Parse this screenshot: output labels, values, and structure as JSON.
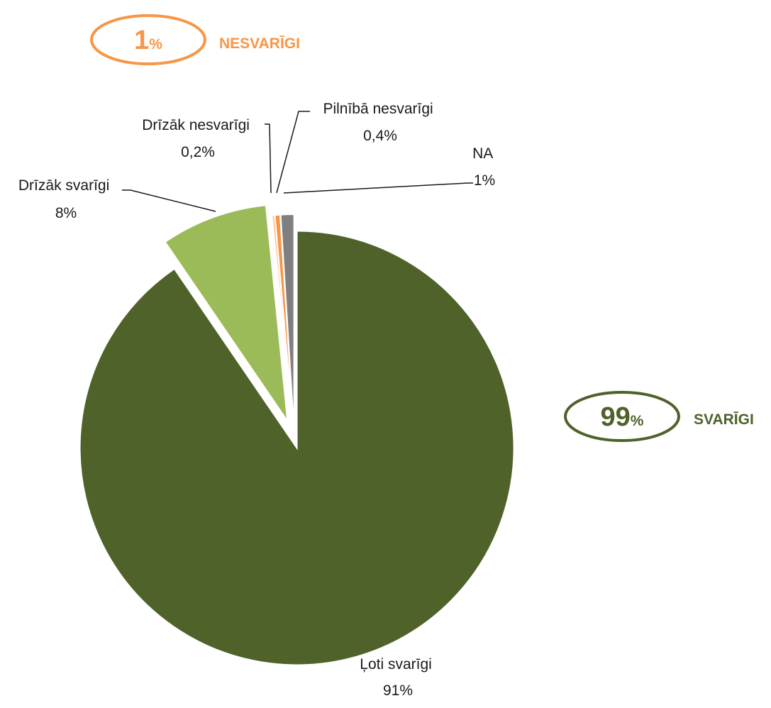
{
  "chart_data": {
    "type": "pie",
    "title": "",
    "slices": [
      {
        "label": "Ļoti svarīgi",
        "value": 91,
        "display": "91%",
        "color": "#4f622a"
      },
      {
        "label": "Drīzāk svarīgi",
        "value": 8,
        "display": "8%",
        "color": "#9bbb59"
      },
      {
        "label": "Drīzāk nesvarīgi",
        "value": 0.2,
        "display": "0,2%",
        "color": "#fbc08a"
      },
      {
        "label": "Pilnībā nesvarīgi",
        "value": 0.4,
        "display": "0,4%",
        "color": "#f79646"
      },
      {
        "label": "NA",
        "value": 1,
        "display": "1%",
        "color": "#7f7f7f"
      }
    ],
    "summaries": [
      {
        "number": "1",
        "unit": "%",
        "label": "NESVARĪGI",
        "color": "#f79646"
      },
      {
        "number": "99",
        "unit": "%",
        "label": "SVARĪGI",
        "color": "#4f622a"
      }
    ]
  }
}
